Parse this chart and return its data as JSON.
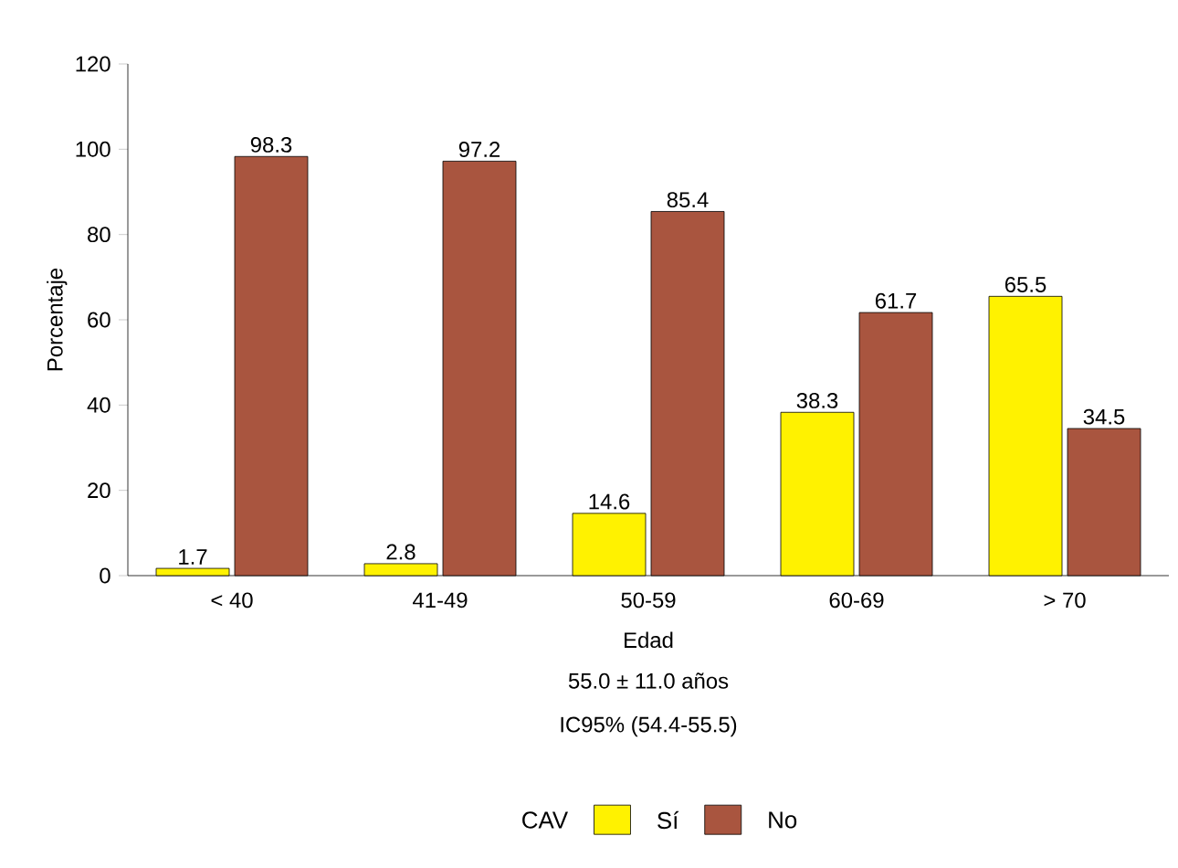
{
  "chart_data": {
    "type": "bar",
    "xlabel": "Edad",
    "ylabel": "Porcentaje",
    "legend_title": "CAV",
    "categories": [
      "< 40",
      "41-49",
      "50-59",
      "60-69",
      "> 70"
    ],
    "series": [
      {
        "name": "Sí",
        "color": "#fff200",
        "values": [
          1.7,
          2.8,
          14.6,
          38.3,
          65.5
        ]
      },
      {
        "name": "No",
        "color": "#a9553f",
        "values": [
          98.3,
          97.2,
          85.4,
          61.7,
          34.5
        ]
      }
    ],
    "ylim": [
      0,
      120
    ],
    "yticks": [
      0,
      20,
      40,
      60,
      80,
      100,
      120
    ],
    "grid": false,
    "legend": "bottom",
    "data_labels": true,
    "annotations": [
      "55.0 ± 11.0 años",
      "IC95% (54.4-55.5)"
    ]
  }
}
